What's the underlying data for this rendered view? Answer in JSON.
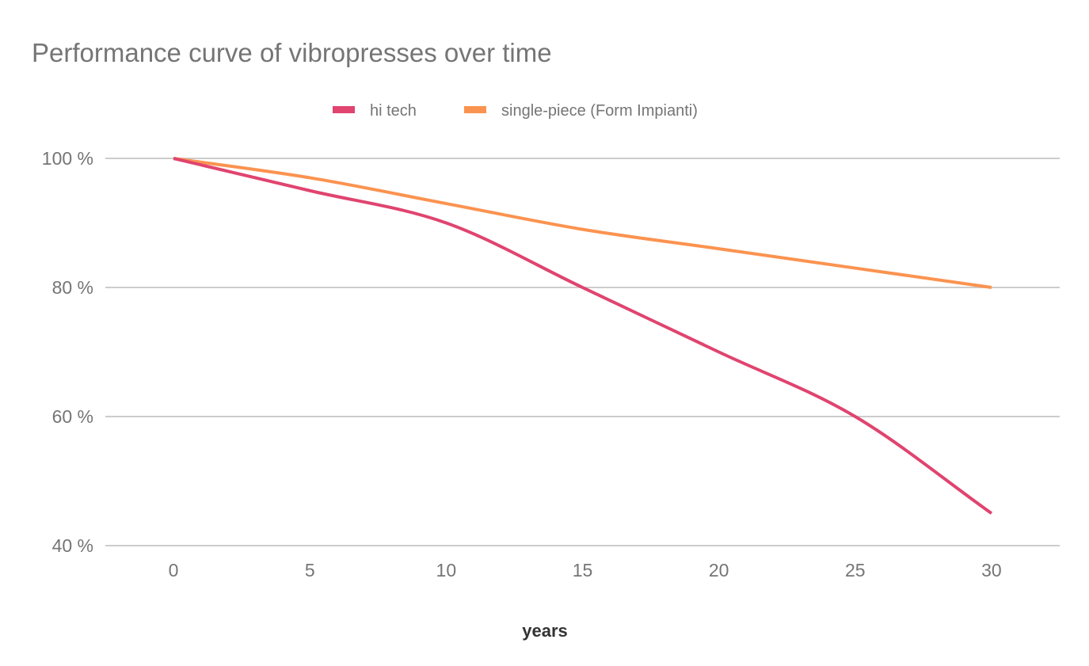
{
  "chart_data": {
    "type": "line",
    "title": "Performance curve of vibropresses over time",
    "xlabel": "years",
    "ylabel": "",
    "x": [
      0,
      5,
      10,
      15,
      20,
      25,
      30
    ],
    "xticks": [
      0,
      5,
      10,
      15,
      20,
      25,
      30
    ],
    "xlim": [
      -2.5,
      32.5
    ],
    "yticks": [
      40,
      60,
      80,
      100
    ],
    "ytick_suffix": " %",
    "ylim": [
      40,
      100
    ],
    "grid": true,
    "legend_position": "top",
    "smooth": true,
    "series": [
      {
        "name": "hi tech",
        "color": "#e0446f",
        "values": [
          100,
          95,
          90,
          80,
          70,
          60,
          45
        ]
      },
      {
        "name": "single-piece (Form Impianti)",
        "color": "#fb9350",
        "values": [
          100,
          97,
          93,
          89,
          86,
          83,
          80
        ]
      }
    ]
  }
}
